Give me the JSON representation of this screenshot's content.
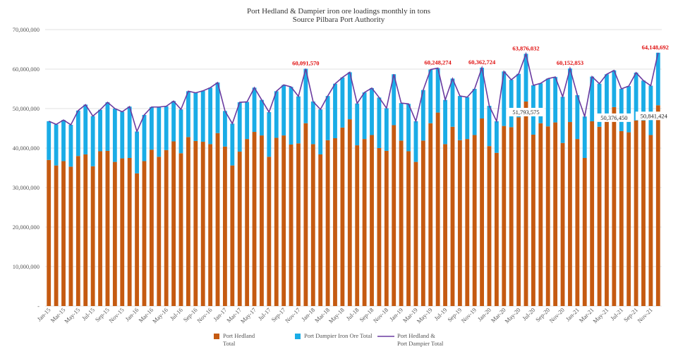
{
  "chart_data": {
    "type": "bar",
    "title": "Port Hedland & Dampier iron ore loadings monthly in tons",
    "subtitle": "Source Pilbara Port Authority",
    "xlabel": "",
    "ylabel": "",
    "ylim": [
      0,
      70000000
    ],
    "yticks": [
      "-",
      "10,000,000",
      "20,000,000",
      "30,000,000",
      "40,000,000",
      "50,000,000",
      "60,000,000",
      "70,000,000"
    ],
    "grid": true,
    "legend_position": "bottom",
    "x_tick_labels": [
      "Jan-15",
      "Mar-15",
      "May-15",
      "Jul-15",
      "Sep-15",
      "Nov-15",
      "Jan-16",
      "Mar-16",
      "May-16",
      "Jul-16",
      "Sep-16",
      "Nov-16",
      "Jan-17",
      "Mar-17",
      "May-17",
      "Jul-17",
      "Sep-17",
      "Nov-17",
      "Jan-18",
      "Mar-18",
      "May-18",
      "Jul-18",
      "Sep-18",
      "Nov-18",
      "Jan-19",
      "Mar-19",
      "May-19",
      "Jul-19",
      "Sep-19",
      "Nov-19",
      "Jan-20",
      "Mar-20",
      "May-20",
      "Jul-20",
      "Sep-20",
      "Nov-20",
      "Jan-21",
      "Mar-21",
      "May-21",
      "Jul-21",
      "Sep-21",
      "Nov-21"
    ],
    "series": [
      {
        "name": "Port Hedland Total",
        "legend_lines": [
          "Port Hedland",
          "Total"
        ],
        "color": "#c55a11",
        "values": [
          37000000,
          35600000,
          36700000,
          35300000,
          38000000,
          38400000,
          35400000,
          39200000,
          39300000,
          36500000,
          37400000,
          37500000,
          33600000,
          36700000,
          39600000,
          37800000,
          39500000,
          41700000,
          38700000,
          42800000,
          41800000,
          41600000,
          41000000,
          43800000,
          40400000,
          35600000,
          39100000,
          42300000,
          44100000,
          43200000,
          37800000,
          42600000,
          43200000,
          40900000,
          41200000,
          46300000,
          41000000,
          38400000,
          42000000,
          42500000,
          45200000,
          47300000,
          40700000,
          42300000,
          43300000,
          40000000,
          39300000,
          45800000,
          41900000,
          39200000,
          36500000,
          41900000,
          46300000,
          49000000,
          41000000,
          45400000,
          42000000,
          42300000,
          43300000,
          47500000,
          40500000,
          38800000,
          45600000,
          45300000,
          47800000,
          51793575,
          43400000,
          46300000,
          45500000,
          46500000,
          41300000,
          46600000,
          42300000,
          37500000,
          46800000,
          45400000,
          48100000,
          50376450,
          44300000,
          44000000,
          47000000,
          47000000,
          43300000,
          50841424
        ]
      },
      {
        "name": "Port Dampier Iron Ore Total",
        "legend_lines": [
          "Port Dampier Iron Ore Total"
        ],
        "color": "#1aace6",
        "values": [
          9800000,
          10400000,
          10400000,
          10600000,
          11500000,
          12600000,
          12700000,
          10500000,
          12300000,
          13500000,
          11800000,
          13000000,
          10600000,
          11700000,
          10800000,
          12600000,
          11100000,
          10200000,
          11100000,
          11600000,
          12200000,
          12900000,
          14300000,
          12800000,
          9000000,
          10600000,
          12500000,
          9400000,
          11200000,
          9000000,
          11300000,
          11800000,
          12800000,
          14600000,
          11900000,
          13791570,
          10800000,
          11400000,
          11200000,
          13800000,
          12700000,
          11900000,
          10600000,
          11800000,
          11900000,
          12800000,
          10800000,
          12900000,
          9500000,
          12000000,
          10300000,
          12800000,
          13600000,
          11248274,
          11200000,
          12200000,
          11200000,
          10600000,
          11700000,
          12862724,
          10200000,
          8000000,
          13800000,
          12000000,
          11000000,
          12082457,
          12500000,
          10100000,
          12100000,
          11500000,
          11700000,
          13552853,
          11100000,
          10500000,
          11300000,
          10900000,
          10600000,
          9300000,
          10700000,
          11700000,
          12100000,
          10100000,
          12500000,
          13307268
        ]
      },
      {
        "name": "Port Hedland & Port Dampier Total",
        "legend_lines": [
          "Port Hedland &",
          "Port Dampier Total"
        ],
        "color": "#6a3ba0",
        "type": "line"
      }
    ],
    "annotations_total": [
      {
        "index": 35,
        "label": "60,091,570"
      },
      {
        "index": 53,
        "label": "60,248,274"
      },
      {
        "index": 59,
        "label": "60,362,724"
      },
      {
        "index": 65,
        "label": "63,876,032"
      },
      {
        "index": 71,
        "label": "60,152,853"
      },
      {
        "index": 83,
        "label": "64,148,692"
      }
    ],
    "annotations_hedland": [
      {
        "index": 65,
        "label": "51,793,575"
      },
      {
        "index": 77,
        "label": "50,376,450"
      },
      {
        "index": 83,
        "label": "50,841,424"
      }
    ]
  }
}
